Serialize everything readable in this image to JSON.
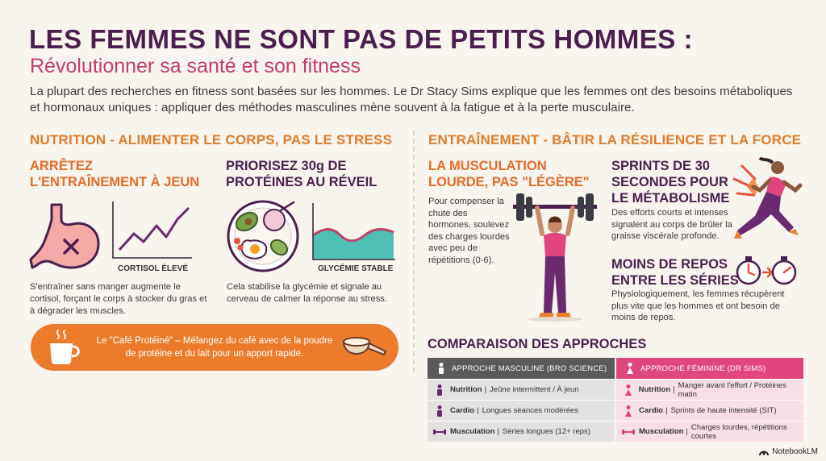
{
  "header": {
    "title": "LES FEMMES NE SONT PAS DE PETITS HOMMES :",
    "subtitle": "Révolutionner sa santé et son fitness",
    "intro": "La plupart des recherches en fitness sont basées sur les hommes. Le Dr Stacy Sims explique que les femmes ont des besoins métaboliques et hormonaux uniques : appliquer des méthodes masculines mène souvent à la fatigue et à la perte musculaire."
  },
  "nutrition": {
    "heading": "NUTRITION - ALIMENTER LE CORPS, PAS LE STRESS",
    "card1": {
      "title_l1": "ARRÊTEZ",
      "title_l2": "L'ENTRAÎNEMENT À JEUN",
      "chart_label": "CORTISOL ÉLEVÉ",
      "text": "S'entraîner sans manger augmente le cortisol, forçant le corps à stocker du gras et à dégrader les muscles."
    },
    "card2": {
      "title_l1": "PRIORISEZ 30g DE",
      "title_l2": "PROTÉINES AU RÉVEIL",
      "chart_label": "GLYCÉMIE STABLE",
      "text": "Cela stabilise la glycémie et signale au cerveau de calmer la réponse au stress."
    },
    "banner": "Le \"Café Protéiné\" – Mélangez du café avec de la poudre de protéine et du lait pour un apport rapide."
  },
  "training": {
    "heading": "ENTRAÎNEMENT - BÂTIR LA RÉSILIENCE ET LA FORCE",
    "card1": {
      "title_l1": "LA MUSCULATION",
      "title_l2": "LOURDE, PAS \"LÉGÈRE\"",
      "text": "Pour compenser la chute des hormones, soulevez des charges lourdes avec peu de répétitions (0-6)."
    },
    "card2": {
      "title_l1": "SPRINTS DE 30",
      "title_l2": "SECONDES POUR",
      "title_l3": "LE MÉTABOLISME",
      "text": "Des efforts courts et intenses signalent au corps de brûler la graisse viscérale profonde."
    },
    "card3": {
      "title_l1": "MOINS DE REPOS",
      "title_l2": "ENTRE LES SÉRIES",
      "text": "Physiologiquement, les femmes récupèrent plus vite que les hommes et ont besoin de moins de repos."
    }
  },
  "comparison": {
    "heading": "COMPARAISON DES APPROCHES",
    "male": {
      "header": "APPROCHE MASCULINE (BRO SCIENCE)",
      "rows": [
        {
          "k": "Nutrition",
          "v": "Jeûne intermittent / À jeun"
        },
        {
          "k": "Cardio",
          "v": "Longues séances modérées"
        },
        {
          "k": "Musculation",
          "v": "Séries longues (12+ reps)"
        }
      ]
    },
    "female": {
      "header": "APPROCHE FÉMININE (DR SIMS)",
      "rows": [
        {
          "k": "Nutrition",
          "v": "Manger avant l'effort / Protéines matin"
        },
        {
          "k": "Cardio",
          "v": "Sprints de haute intensité (SIT)"
        },
        {
          "k": "Musculation",
          "v": "Charges lourdes, répétitions courtes"
        }
      ]
    },
    "separator": "|"
  },
  "brand": "NotebookLM",
  "colors": {
    "accent_orange": "#e36d2a",
    "accent_purple": "#4a1f4e",
    "accent_pink": "#e0457e",
    "graph_teal": "#4fbfb3"
  },
  "icons": [
    "stomach-icon",
    "line-chart-icon",
    "breakfast-plate-icon",
    "glucose-wave-icon",
    "coffee-cup-icon",
    "protein-scoop-icon",
    "weightlifter-icon",
    "sprinter-icon",
    "stopwatch-icon",
    "person-icon",
    "dumbbell-icon",
    "notebooklm-logo-icon"
  ]
}
